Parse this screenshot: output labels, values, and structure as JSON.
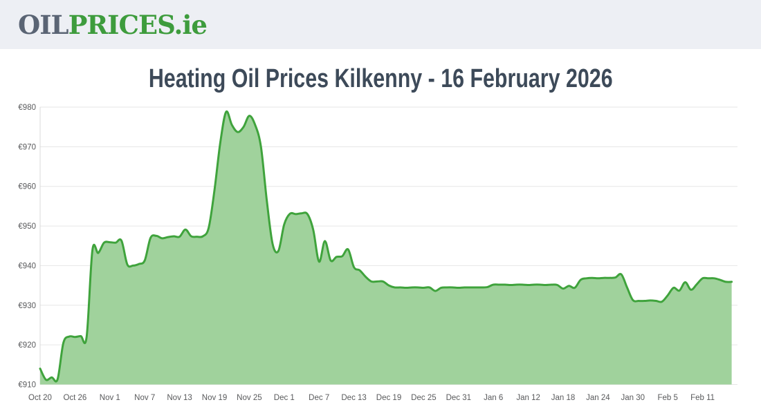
{
  "header": {
    "logo": {
      "part1": "OIL",
      "part2": "PRICES",
      "part3": ".ie"
    }
  },
  "title": "Heating Oil Prices Kilkenny - 16 February 2026",
  "colors": {
    "header_bg": "#edeff4",
    "logo_gray": "#5a6474",
    "logo_green": "#3e9c3d",
    "title": "#3d4a59",
    "axis_text": "#58595b"
  },
  "chart_data": {
    "type": "area",
    "title": "Heating Oil Prices Kilkenny - 16 February 2026",
    "xlabel": "",
    "ylabel": "",
    "currency": "€",
    "ylim": [
      910,
      980
    ],
    "y_tick_step": 10,
    "y_ticks": [
      "€910",
      "€920",
      "€930",
      "€940",
      "€950",
      "€960",
      "€970",
      "€980"
    ],
    "x_ticks": [
      "Oct 20",
      "Oct 26",
      "Nov 1",
      "Nov 7",
      "Nov 13",
      "Nov 19",
      "Nov 25",
      "Dec 1",
      "Dec 7",
      "Dec 13",
      "Dec 19",
      "Dec 25",
      "Dec 31",
      "Jan 6",
      "Jan 12",
      "Jan 18",
      "Jan 24",
      "Jan 30",
      "Feb 5",
      "Feb 11"
    ],
    "x_start_label": "Oct 20",
    "x_end_label": "Feb 16",
    "interval_days": 1,
    "tick_every_n_points": 6,
    "grid": "horizontal-only",
    "legend": "none",
    "line_color": "#3fa33c",
    "fill_color": "#a0d29c",
    "grid_color": "#e6e6e6",
    "axis_line_color": "#d9d9d9",
    "values": [
      914.0,
      911.2,
      911.8,
      911.3,
      920.5,
      922.1,
      922.0,
      922.2,
      922.0,
      943.9,
      943.2,
      945.8,
      945.9,
      945.8,
      946.3,
      940.3,
      940.0,
      940.4,
      941.3,
      947.0,
      947.5,
      946.9,
      947.2,
      947.4,
      947.3,
      949.1,
      947.4,
      947.3,
      947.4,
      949.5,
      959.0,
      971.0,
      978.8,
      975.5,
      973.7,
      975.0,
      977.8,
      975.5,
      970.0,
      956.5,
      945.5,
      943.7,
      950.4,
      953.1,
      953.0,
      953.2,
      953.0,
      949.0,
      941.0,
      946.2,
      941.3,
      942.2,
      942.4,
      944.1,
      939.6,
      938.8,
      937.2,
      936.0,
      936.0,
      936.0,
      935.0,
      934.5,
      934.5,
      934.4,
      934.5,
      934.5,
      934.4,
      934.5,
      933.6,
      934.4,
      934.5,
      934.5,
      934.4,
      934.5,
      934.5,
      934.5,
      934.5,
      934.6,
      935.2,
      935.2,
      935.2,
      935.1,
      935.2,
      935.2,
      935.1,
      935.2,
      935.2,
      935.1,
      935.2,
      935.1,
      934.2,
      934.9,
      934.4,
      936.4,
      936.8,
      936.9,
      936.8,
      936.9,
      936.9,
      937.0,
      937.8,
      934.5,
      931.3,
      931.1,
      931.1,
      931.2,
      931.1,
      930.9,
      932.5,
      934.4,
      933.7,
      935.8,
      933.9,
      935.3,
      936.8,
      936.8,
      936.8,
      936.4,
      935.9,
      935.9
    ]
  }
}
